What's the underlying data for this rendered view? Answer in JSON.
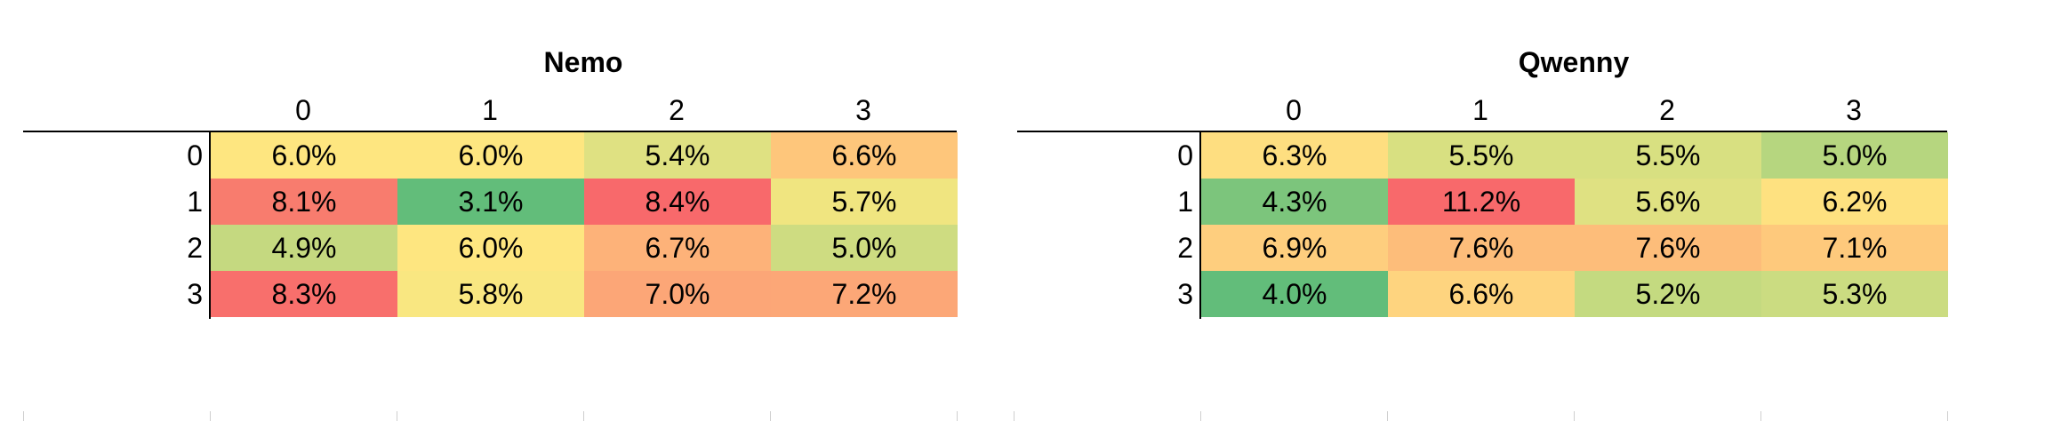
{
  "tables": [
    {
      "title": "Nemo",
      "columns": [
        "0",
        "1",
        "2",
        "3"
      ],
      "rows": [
        "0",
        "1",
        "2",
        "3"
      ],
      "values": [
        [
          "6.0%",
          "6.0%",
          "5.4%",
          "6.6%"
        ],
        [
          "8.1%",
          "3.1%",
          "8.4%",
          "5.7%"
        ],
        [
          "4.9%",
          "6.0%",
          "6.7%",
          "5.0%"
        ],
        [
          "8.3%",
          "5.8%",
          "7.0%",
          "7.2%"
        ]
      ],
      "colors": [
        [
          "#fee680",
          "#fee680",
          "#dfe182",
          "#fec67b"
        ],
        [
          "#f87c6e",
          "#62bd7a",
          "#f8696b",
          "#f0e580"
        ],
        [
          "#c5d980",
          "#fee680",
          "#fdb279",
          "#cedc81"
        ],
        [
          "#f86f6c",
          "#f9e781",
          "#fca677",
          "#fca777"
        ]
      ]
    },
    {
      "title": "Qwenny",
      "columns": [
        "0",
        "1",
        "2",
        "3"
      ],
      "rows": [
        "0",
        "1",
        "2",
        "3"
      ],
      "values": [
        [
          "6.3%",
          "5.5%",
          "5.5%",
          "5.0%"
        ],
        [
          "4.3%",
          "11.2%",
          "5.6%",
          "6.2%"
        ],
        [
          "6.9%",
          "7.6%",
          "7.6%",
          "7.1%"
        ],
        [
          "4.0%",
          "6.6%",
          "5.2%",
          "5.3%"
        ]
      ],
      "colors": [
        [
          "#fede80",
          "#d8e081",
          "#d8e081",
          "#b6d67f"
        ],
        [
          "#7cc57c",
          "#f8696b",
          "#dfe182",
          "#fee180"
        ],
        [
          "#fece7e",
          "#fdbd7a",
          "#fdbd7a",
          "#fec97c"
        ],
        [
          "#62bd7a",
          "#fed47f",
          "#c4da80",
          "#cbdc81"
        ]
      ]
    }
  ]
}
